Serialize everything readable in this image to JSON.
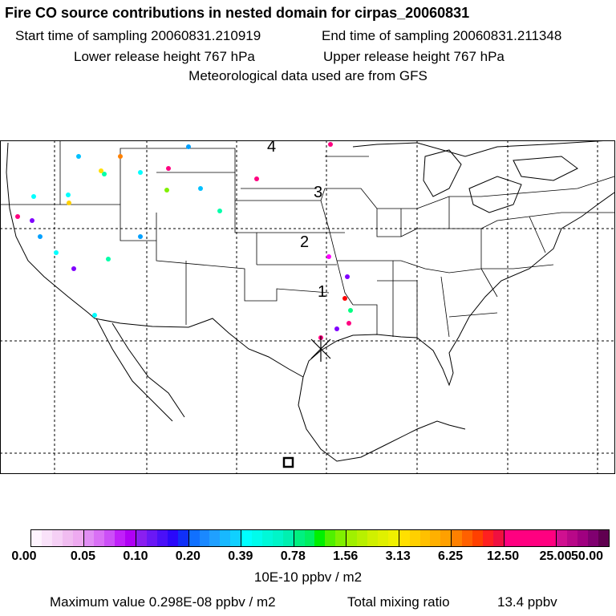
{
  "header": {
    "title": "Fire CO source contributions in nested domain for cirpas_20060831",
    "start_time": "Start time of sampling 20060831.210919",
    "end_time": "End time of sampling 20060831.211348",
    "lower_release": "Lower release height  767 hPa",
    "upper_release": "Upper release height  767 hPa",
    "met_data": "Meteorological data used are from GFS"
  },
  "map": {
    "trajectory_labels": [
      "1",
      "2",
      "3",
      "4"
    ],
    "receptor_marker": "x-marker",
    "source_marker": "square-marker"
  },
  "colorbar": {
    "ticks": [
      "0.00",
      "0.05",
      "0.10",
      "0.20",
      "0.39",
      "0.78",
      "1.56",
      "3.13",
      "6.25",
      "12.50",
      "25.00",
      "50.00"
    ],
    "segments": [
      [
        "#fdf3fd",
        "#f9e2f9",
        "#f5d0f5",
        "#f0bcf0",
        "#eeaaf0"
      ],
      [
        "#e18ef4",
        "#d970f5",
        "#cc4ff7",
        "#c020f9",
        "#b000f5"
      ],
      [
        "#8a1ff0",
        "#6a18f5",
        "#4a10f8",
        "#2a08fa",
        "#1030f8"
      ],
      [
        "#1070ff",
        "#1a88ff",
        "#20a0ff",
        "#18b8ff",
        "#10d0ff"
      ],
      [
        "#00ffff",
        "#00fcec",
        "#00f8d8",
        "#00f5c8",
        "#00f0b0"
      ],
      [
        "#00f080",
        "#00f060",
        "#00f000",
        "#50f000",
        "#80f000"
      ],
      [
        "#a0f000",
        "#b8f000",
        "#d0f000",
        "#e0f000",
        "#f0f000"
      ],
      [
        "#ffe000",
        "#ffd000",
        "#ffc000",
        "#ffb000",
        "#ffa000"
      ],
      [
        "#ff8000",
        "#ff6000",
        "#ff4000",
        "#ff2020",
        "#f01040"
      ],
      [
        "#ff0080",
        "#ff0080",
        "#ff0080",
        "#ff0080",
        "#ff0080"
      ],
      [
        "#d01090",
        "#b80888",
        "#a00080",
        "#800070",
        "#600050"
      ]
    ],
    "units": "10E-10 ppbv / m2"
  },
  "footer": {
    "max_value": "Maximum value  0.298E-08 ppbv / m2",
    "total_mixing_label": "Total mixing ratio",
    "total_mixing_value": "13.4 ppbv"
  }
}
